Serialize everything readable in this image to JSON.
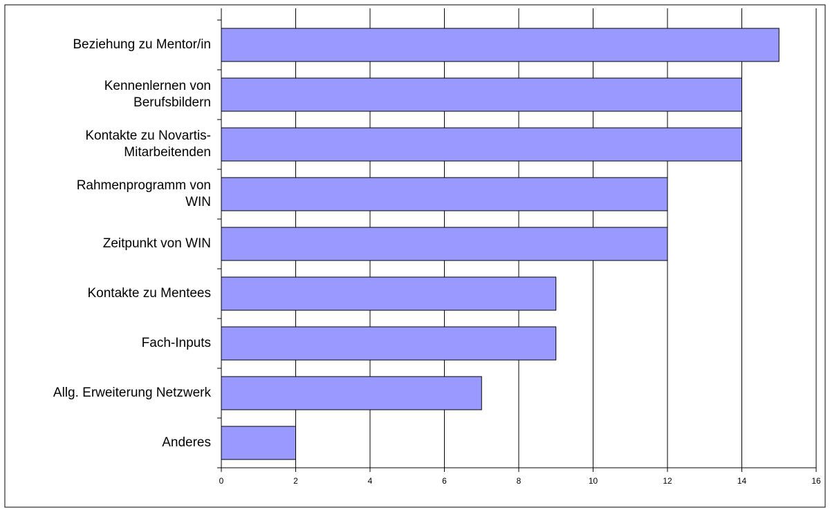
{
  "chart_data": {
    "type": "bar",
    "orientation": "horizontal",
    "categories": [
      "Beziehung zu Mentor/in",
      "Kennenlernen von\nBerufsbildern",
      "Kontakte zu Novartis-\nMitarbeitenden",
      "Rahmenprogramm von\nWIN",
      "Zeitpunkt von WIN",
      "Kontakte zu Mentees",
      "Fach-Inputs",
      "Allg. Erweiterung Netzwerk",
      "Anderes"
    ],
    "values": [
      15,
      14,
      14,
      12,
      12,
      9,
      9,
      7,
      2
    ],
    "color": "#9999ff",
    "xlim": [
      0,
      16
    ],
    "xticks": [
      0,
      2,
      4,
      6,
      8,
      10,
      12,
      14,
      16
    ],
    "grid": true
  }
}
